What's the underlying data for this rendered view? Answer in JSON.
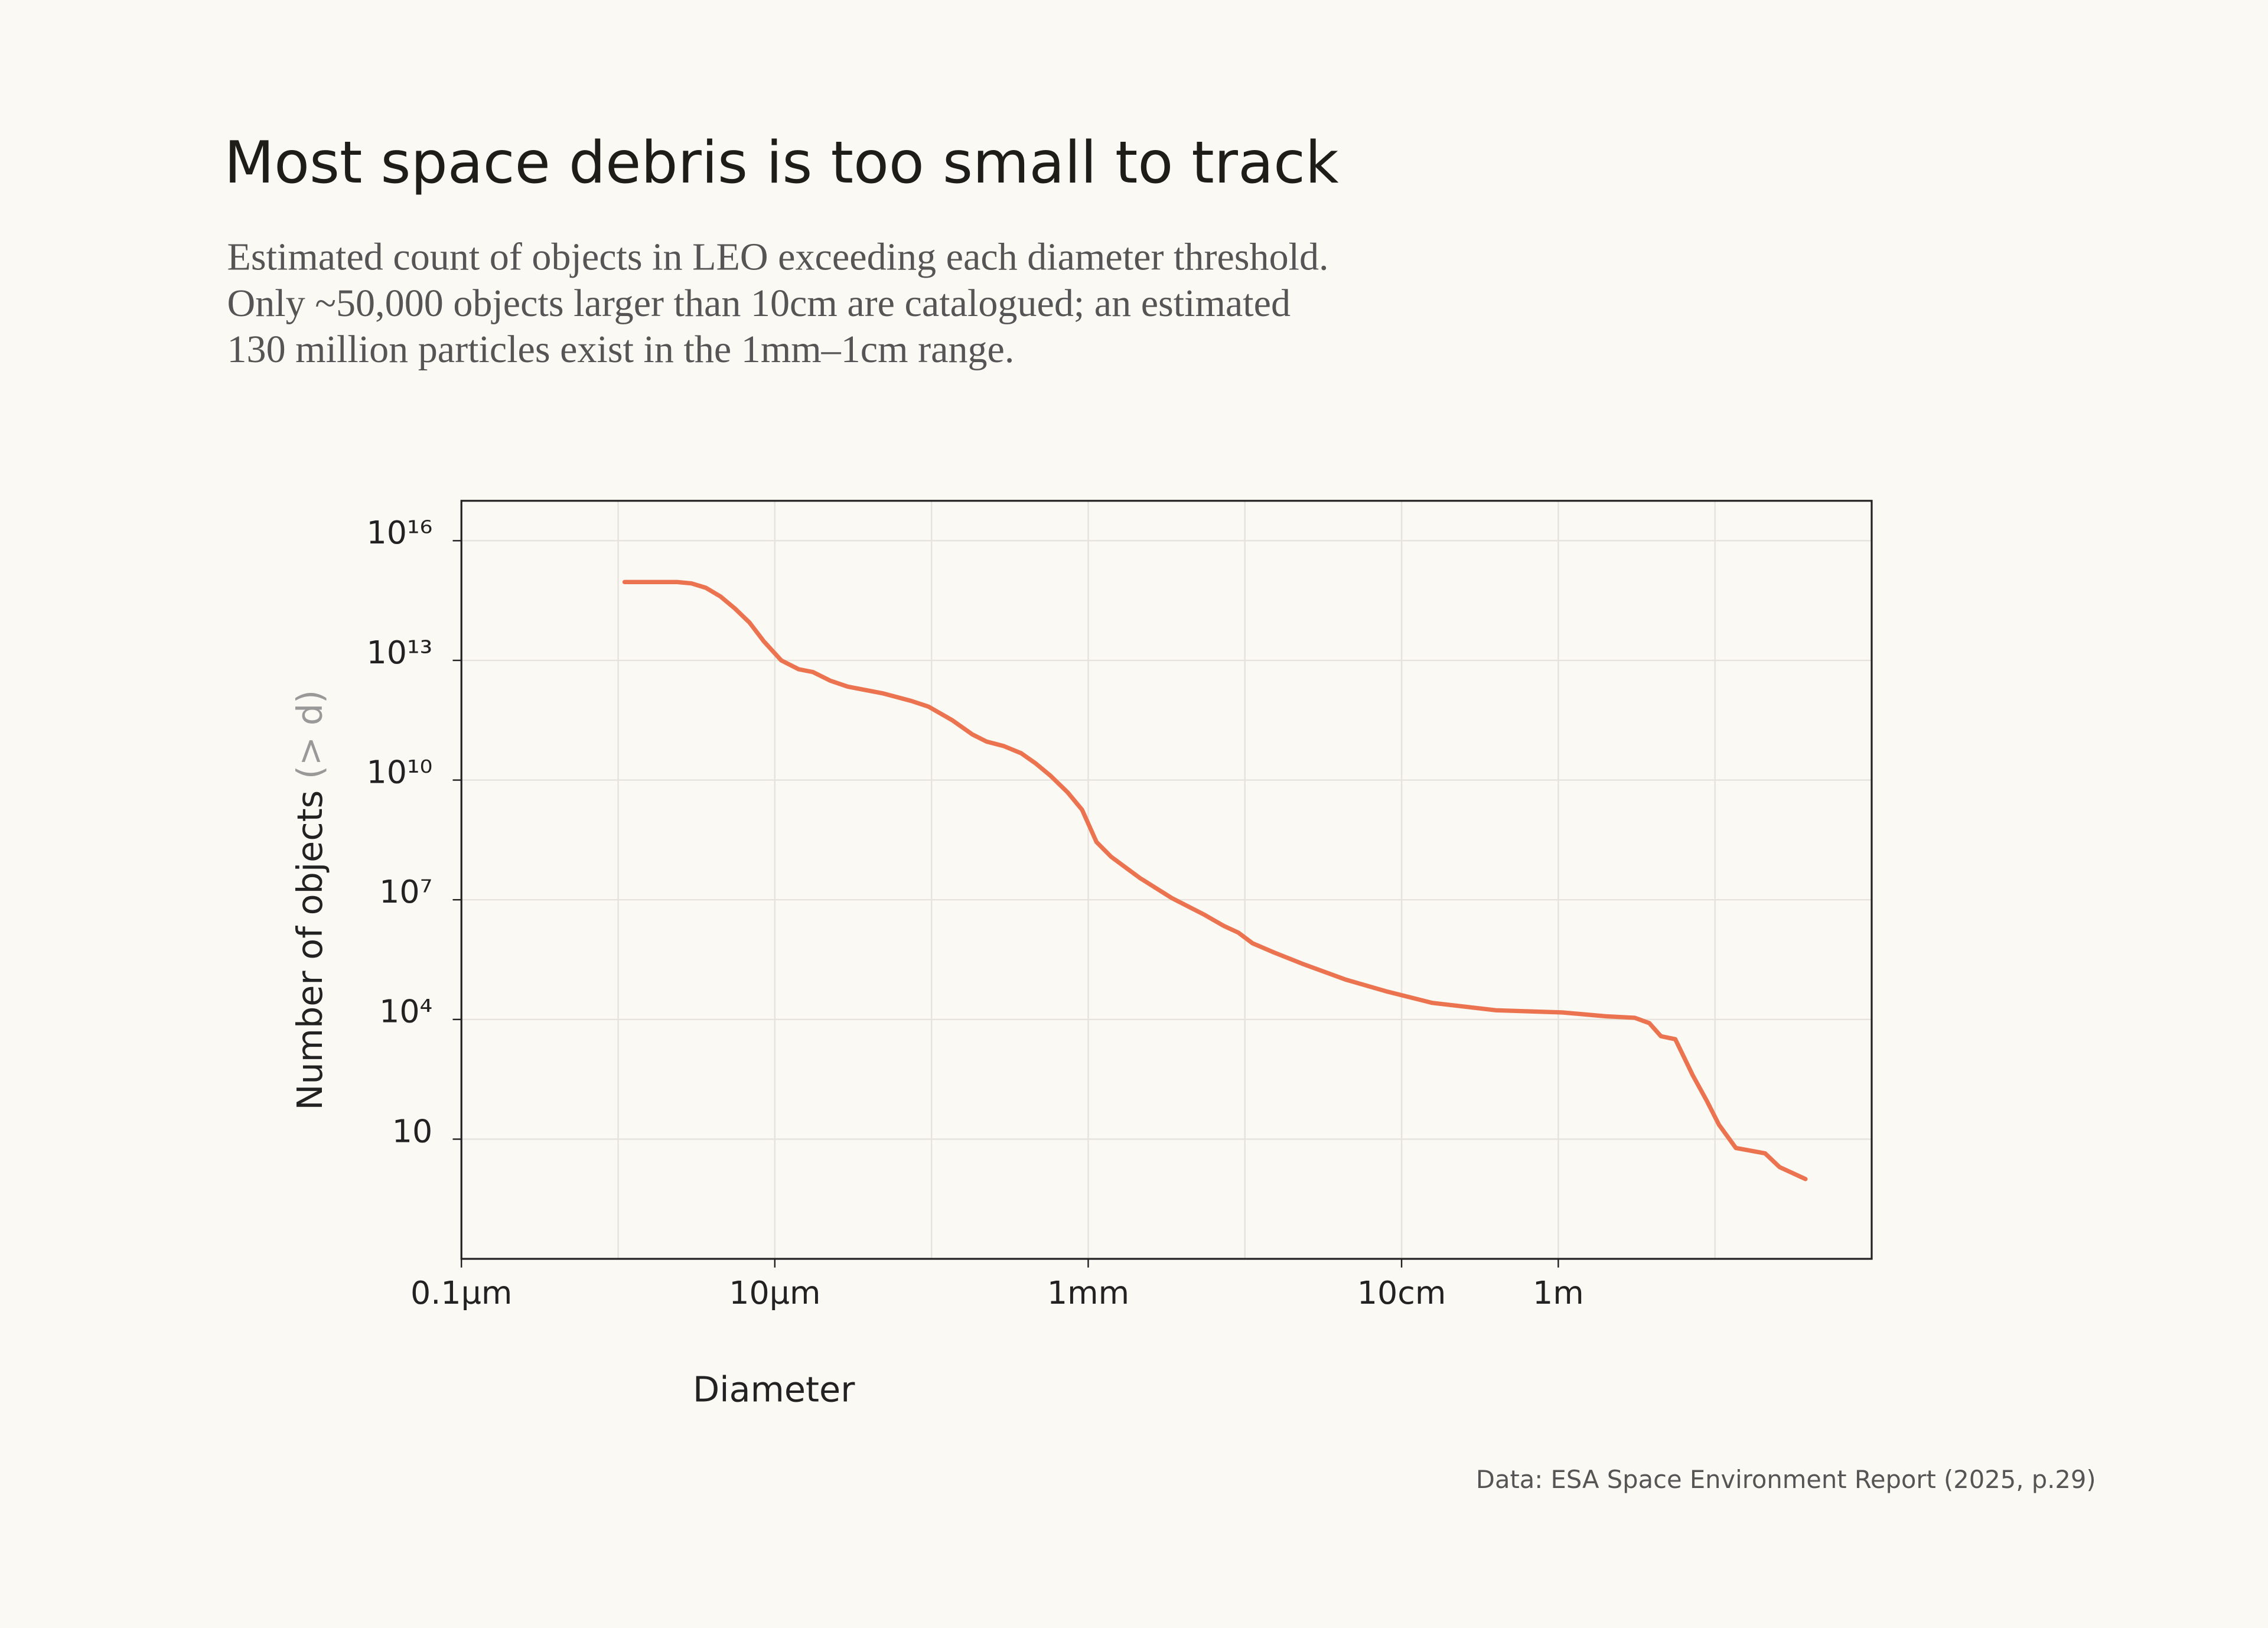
{
  "chart_data": {
    "type": "line",
    "title": "Most space debris is too small to track",
    "subtitle": [
      "Estimated count of objects in LEO exceeding each diameter threshold.",
      "Only ~50,000 objects larger than 10cm are catalogued; an estimated",
      "130 million particles exist in the 1mm–1cm range."
    ],
    "xlabel": "Diameter",
    "ylabel": "Number of objects",
    "ylabel_note": "(> d)",
    "source": "Data:  ESA Space Environment Report (2025, p.29)",
    "xscale": "log",
    "yscale": "log",
    "grid": true,
    "color": "#ec7350",
    "xlim": [
      1e-07,
      100
    ],
    "xticks": [
      {
        "value": 1e-07,
        "label": "0.1µm"
      },
      {
        "value": 1e-05,
        "label": "10µm"
      },
      {
        "value": 0.001,
        "label": "1mm"
      },
      {
        "value": 0.1,
        "label": "10cm"
      },
      {
        "value": 1,
        "label": "1m"
      }
    ],
    "xgrid_minor": [
      1e-06,
      0.0001,
      0.01,
      10
    ],
    "ylim": [
      0.01,
      1e+17
    ],
    "yticks": [
      10,
      {
        "value": 10000,
        "label": "10⁴"
      },
      {
        "value": 10000000.0,
        "label": "10⁷"
      },
      {
        "value": 10000000000.0,
        "label": "10¹⁰"
      },
      {
        "value": 10000000000000.0,
        "label": "10¹³"
      },
      {
        "value": 1e+16,
        "label": "10¹⁶"
      }
    ],
    "x": [
      1.1e-06,
      2.38e-06,
      2.94e-06,
      3.63e-06,
      4.5e-06,
      5.56e-06,
      6.89e-06,
      8.51e-06,
      1.1e-05,
      1.42e-05,
      1.75e-05,
      2.26e-05,
      2.92e-05,
      4.86e-05,
      7.45e-05,
      9.6e-05,
      0.000135,
      0.000182,
      0.000225,
      0.00029,
      0.000374,
      0.000463,
      0.000573,
      0.00074,
      0.000914,
      0.00113,
      0.0014,
      0.00214,
      0.00342,
      0.00546,
      0.00735,
      0.00908,
      0.0112,
      0.0151,
      0.0232,
      0.0439,
      0.0794,
      0.157,
      0.4,
      1.06,
      2.01,
      3.08,
      3.81,
      4.52,
      5.58,
      7.21,
      8.91,
      10.6,
      13.6,
      20.9,
      25.8,
      37.8
    ],
    "values": [
      920000000000000.0,
      920000000000000.0,
      850000000000000.0,
      660000000000000.0,
      400000000000000.0,
      200000000000000.0,
      89000000000000.0,
      30000000000000.0,
      10000000000000.0,
      6000000000000.0,
      5100000000000.0,
      3100000000000.0,
      2200000000000.0,
      1500000000000.0,
      960000000000.0,
      690000000000.0,
      320000000000.0,
      140000000000.0,
      92000000000.0,
      71000000000.0,
      47000000000.0,
      26000000000.0,
      13000000000.0,
      4900000000.0,
      1800000000.0,
      280000000.0,
      120000000.0,
      35000000.0,
      11000000.0,
      4300000.0,
      2200000.0,
      1500000.0,
      810000.0,
      490000.0,
      250000.0,
      100000.0,
      51000.0,
      26000.0,
      17000.0,
      15000.0,
      12000.0,
      11000.0,
      8100,
      3800,
      3200,
      400,
      88,
      23,
      6,
      4.4,
      2,
      1
    ]
  }
}
